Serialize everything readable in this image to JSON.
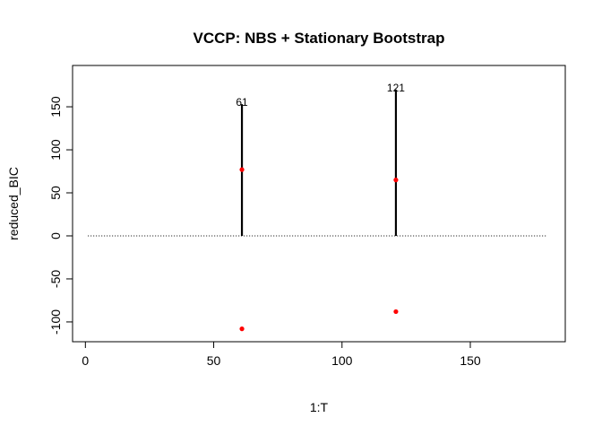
{
  "chart_data": {
    "type": "scatter",
    "title": "VCCP: NBS + Stationary Bootstrap",
    "xlabel": "1:T",
    "ylabel": "reduced_BIC",
    "xlim": [
      -5,
      187
    ],
    "ylim": [
      -123,
      198
    ],
    "x_ticks": [
      0,
      50,
      100,
      150
    ],
    "y_ticks": [
      -100,
      -50,
      0,
      50,
      100,
      150
    ],
    "grid": false,
    "baseline": {
      "y": 0,
      "x_from": 1,
      "x_to": 180,
      "style": "dotted"
    },
    "segments": [
      {
        "x": 61,
        "y0": 0,
        "y1": 153,
        "label": "61"
      },
      {
        "x": 121,
        "y0": 0,
        "y1": 170,
        "label": "121"
      }
    ],
    "points": [
      {
        "x": 61,
        "y": 77
      },
      {
        "x": 61,
        "y": -108
      },
      {
        "x": 121,
        "y": 65
      },
      {
        "x": 121,
        "y": -88
      }
    ],
    "colors": {
      "segments": "#000000",
      "points": "#ff0000",
      "baseline": "#000000"
    }
  }
}
